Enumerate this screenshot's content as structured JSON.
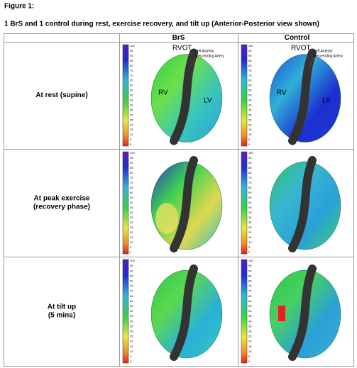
{
  "figure_label": "Figure 1:",
  "caption": "1 BrS and 1 control during rest, exercise recovery, and tilt up (Anterior-Posterior view shown)",
  "table": {
    "columns": [
      "BrS",
      "Control"
    ],
    "rows": [
      [
        "At rest (supine)"
      ],
      [
        "At peak exercise",
        "(recovery phase)"
      ],
      [
        "At tilt up",
        "(5 mins)"
      ]
    ]
  },
  "annotations": {
    "rvot": "RVOT",
    "lad": [
      "Left Anterior",
      "Descending Artery"
    ],
    "rv": "RV",
    "lv": "LV"
  },
  "color_scale": [
    100,
    95,
    90,
    85,
    80,
    75,
    70,
    65,
    60,
    55,
    50,
    45,
    40,
    35,
    30,
    25,
    20,
    15,
    10,
    5,
    0
  ]
}
